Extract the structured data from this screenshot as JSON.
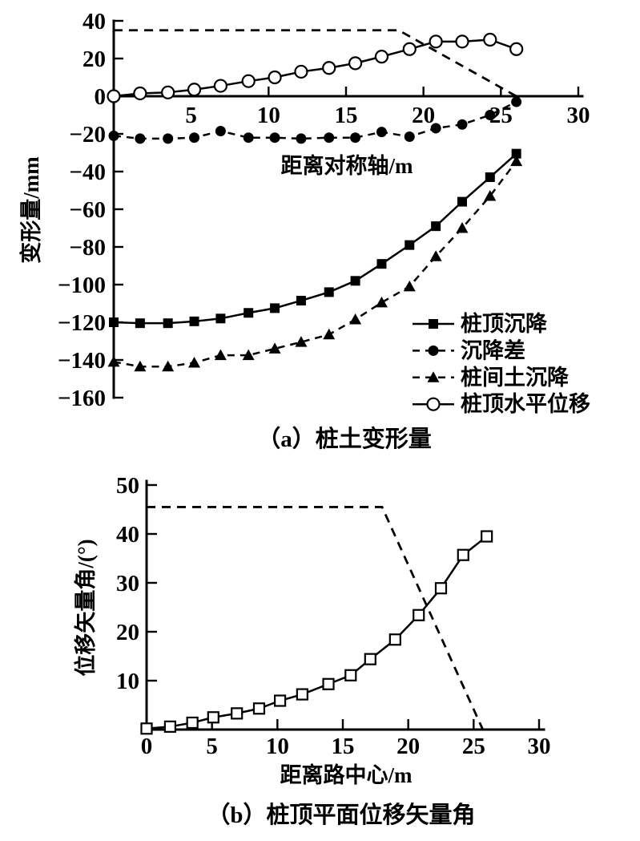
{
  "chart_data": [
    {
      "type": "line",
      "caption": "（a）桩土变形量",
      "xlabel": "距离对称轴/m",
      "ylabel": "变形量/mm",
      "xlim": [
        0,
        30
      ],
      "ylim": [
        -160,
        40
      ],
      "xticks": [
        5,
        10,
        15,
        20,
        25,
        30
      ],
      "yticks": [
        40,
        20,
        0,
        -20,
        -40,
        -60,
        -80,
        -100,
        -120,
        -140,
        -160
      ],
      "grid": false,
      "legend_position": "inside-right",
      "x": [
        0,
        1.7,
        3.5,
        5.2,
        6.9,
        8.7,
        10.4,
        12.1,
        13.9,
        15.6,
        17.3,
        19.1,
        20.8,
        22.5,
        24.3,
        26
      ],
      "series": [
        {
          "name": "桩顶沉降",
          "marker": "filled-square",
          "line": "solid",
          "values": [
            -120,
            -120.5,
            -120.5,
            -119.5,
            -118,
            -115,
            -112.5,
            -108.5,
            -104,
            -98,
            -89,
            -79,
            -69,
            -56,
            -43,
            -30.5
          ]
        },
        {
          "name": "沉降差",
          "marker": "filled-circle",
          "line": "dashed",
          "values": [
            -21,
            -22.5,
            -22.5,
            -22,
            -18.5,
            -22,
            -22,
            -22.5,
            -22,
            -22,
            -19,
            -21.5,
            -17,
            -15,
            -10,
            -3
          ]
        },
        {
          "name": "桩间土沉降",
          "marker": "filled-triangle",
          "line": "dashed",
          "values": [
            -141,
            -143.5,
            -143.5,
            -141.5,
            -137.5,
            -137.5,
            -134,
            -130.5,
            -126.5,
            -118.5,
            -109.5,
            -101,
            -85,
            -70,
            -53,
            -34.5
          ]
        },
        {
          "name": "桩顶水平位移",
          "marker": "open-circle",
          "line": "solid",
          "values": [
            0,
            1.5,
            2,
            3.5,
            5.5,
            8,
            10,
            13,
            15,
            17.5,
            21,
            25,
            29,
            29,
            30,
            25
          ]
        }
      ],
      "guide_line": {
        "style": "dashed",
        "points": [
          [
            0,
            35
          ],
          [
            18.4,
            35
          ],
          [
            26,
            0
          ]
        ]
      }
    },
    {
      "type": "line",
      "caption": "（b）桩顶平面位移矢量角",
      "xlabel": "距离路中心/m",
      "ylabel": "位移矢量角/(°)",
      "xlim": [
        0,
        30
      ],
      "ylim": [
        0,
        50
      ],
      "xticks": [
        0,
        5,
        10,
        15,
        20,
        25,
        30
      ],
      "yticks": [
        10,
        20,
        30,
        40,
        50
      ],
      "grid": false,
      "x": [
        0,
        1.8,
        3.5,
        5.1,
        6.9,
        8.6,
        10.2,
        11.9,
        13.9,
        15.6,
        17.1,
        19,
        20.8,
        22.5,
        24.2,
        26
      ],
      "series": [
        {
          "name": "位移矢量角",
          "marker": "open-square",
          "line": "solid",
          "values": [
            0.2,
            0.6,
            1.4,
            2.5,
            3.3,
            4.3,
            5.9,
            7.2,
            9.3,
            11.1,
            14.4,
            18.4,
            23.4,
            28.9,
            35.7,
            39.5
          ]
        }
      ],
      "guide_line": {
        "style": "dashed",
        "points": [
          [
            0,
            45.5
          ],
          [
            18,
            45.5
          ],
          [
            25.7,
            0
          ]
        ]
      }
    }
  ]
}
